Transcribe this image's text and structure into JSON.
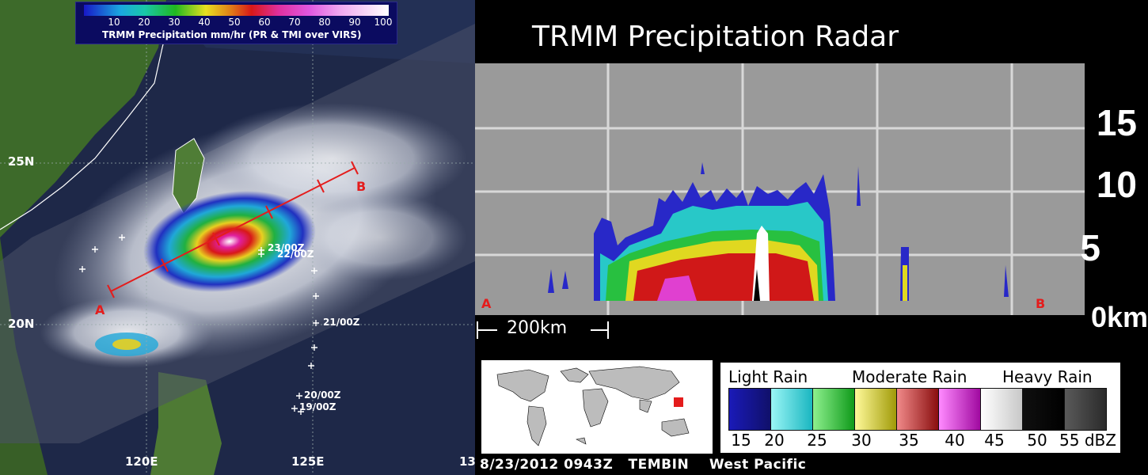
{
  "map": {
    "colorbar_ticks": [
      "10",
      "20",
      "30",
      "40",
      "50",
      "60",
      "70",
      "80",
      "90",
      "100"
    ],
    "colorbar_caption": "TRMM Precipitation mm/hr (PR & TMI over VIRS)",
    "lat_labels": [
      "25N",
      "20N"
    ],
    "lon_labels": [
      "120E",
      "125E",
      "13"
    ],
    "track_labels": [
      "23/00Z",
      "22/00Z",
      "21/00Z",
      "20/00Z",
      "19/00Z"
    ],
    "point_a": "A",
    "point_b": "B"
  },
  "radar": {
    "title": "TRMM Precipitation Radar",
    "y_ticks": [
      "15",
      "10",
      "5",
      "0km"
    ],
    "point_a": "A",
    "point_b": "B",
    "scale_label": "200km"
  },
  "legend": {
    "categories": [
      "Light Rain",
      "Moderate Rain",
      "Heavy Rain"
    ],
    "swatches": [
      {
        "from": "#1a1ab8",
        "to": "#10106a"
      },
      {
        "from": "#9af6f6",
        "to": "#1ab6c0"
      },
      {
        "from": "#8ef08e",
        "to": "#0f9a1a"
      },
      {
        "from": "#fffa9a",
        "to": "#a09a08"
      },
      {
        "from": "#f08a8a",
        "to": "#8a0e0e"
      },
      {
        "from": "#ff8aff",
        "to": "#a00aa0"
      },
      {
        "from": "#ffffff",
        "to": "#c8c8c8"
      },
      {
        "from": "#101010",
        "to": "#000000"
      },
      {
        "from": "#5a5a5a",
        "to": "#2a2a2a"
      }
    ],
    "values": [
      "15",
      "20",
      "25",
      "30",
      "35",
      "40",
      "45",
      "50",
      "55 dBZ"
    ]
  },
  "footer": "8/23/2012 0943Z   TEMBIN    West Pacific",
  "colors": {
    "track_line": "#e41c1c",
    "radar_bg": "#9a9a9a",
    "grid": "#d8d8d8"
  }
}
